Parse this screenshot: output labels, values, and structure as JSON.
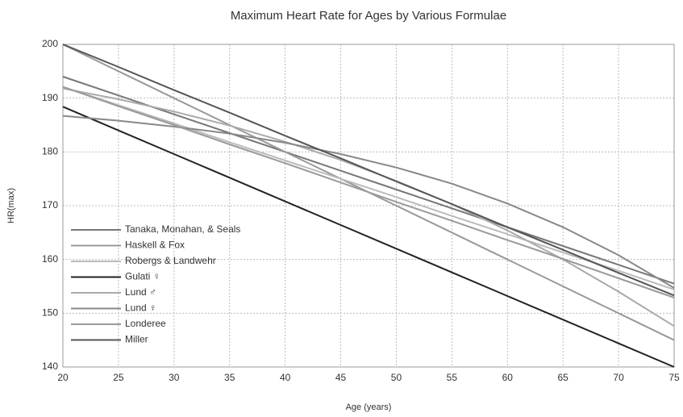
{
  "chart_data": {
    "type": "line",
    "title": "Maximum Heart Rate for Ages by Various Formulae",
    "x_label": "Age (years)",
    "y_label": "HR(max)",
    "x": [
      20,
      25,
      30,
      35,
      40,
      45,
      50,
      55,
      60,
      65,
      70,
      75
    ],
    "xlim": [
      20,
      75
    ],
    "xticks": [
      20,
      25,
      30,
      35,
      40,
      45,
      50,
      55,
      60,
      65,
      70,
      75
    ],
    "ylim": [
      140,
      200
    ],
    "yticks": [
      140,
      150,
      160,
      170,
      180,
      190,
      200
    ],
    "grid": true,
    "legend_position": "lower left",
    "series": [
      {
        "name": "Tanaka, Monahan, & Seals",
        "color": "#777777",
        "values": [
          194,
          190.5,
          187,
          183.5,
          180,
          176.5,
          173,
          169.5,
          166,
          162.5,
          159,
          155.5
        ]
      },
      {
        "name": "Haskell & Fox",
        "color": "#999999",
        "values": [
          200,
          195,
          190,
          185,
          180,
          175,
          170,
          165,
          160,
          155,
          150,
          145
        ]
      },
      {
        "name": "Robergs & Landwehr",
        "color": "#bbbbbb",
        "values": [
          192.1,
          188.7,
          185.3,
          181.8,
          178.4,
          175.0,
          171.6,
          168.1,
          164.7,
          161.3,
          157.9,
          154.4
        ]
      },
      {
        "name": "Gulati ♀",
        "color": "#222222",
        "values": [
          188.4,
          184,
          179.6,
          175.2,
          170.8,
          166.4,
          162,
          157.6,
          153.2,
          148.8,
          144.4,
          140
        ]
      },
      {
        "name": "Lund ♂",
        "color": "#aaaaaa",
        "values": [
          191.8,
          189.8,
          187.5,
          184.9,
          181.9,
          178.5,
          174.6,
          170.3,
          165.4,
          160.0,
          154.0,
          147.6
        ]
      },
      {
        "name": "Lund ♀",
        "color": "#888888",
        "values": [
          186.7,
          185.8,
          184.7,
          183.4,
          181.7,
          179.6,
          177.1,
          174.1,
          170.4,
          166.0,
          160.8,
          154.7
        ]
      },
      {
        "name": "Londeree",
        "color": "#9a9a9a",
        "values": [
          192.1,
          188.5,
          185.0,
          181.4,
          177.9,
          174.3,
          170.7,
          167.2,
          163.6,
          160.1,
          156.5,
          152.9
        ]
      },
      {
        "name": "Miller",
        "color": "#555555",
        "values": [
          200,
          195.8,
          191.5,
          187.3,
          183,
          178.8,
          174.5,
          170.3,
          166,
          161.8,
          157.5,
          153.3
        ]
      }
    ]
  }
}
